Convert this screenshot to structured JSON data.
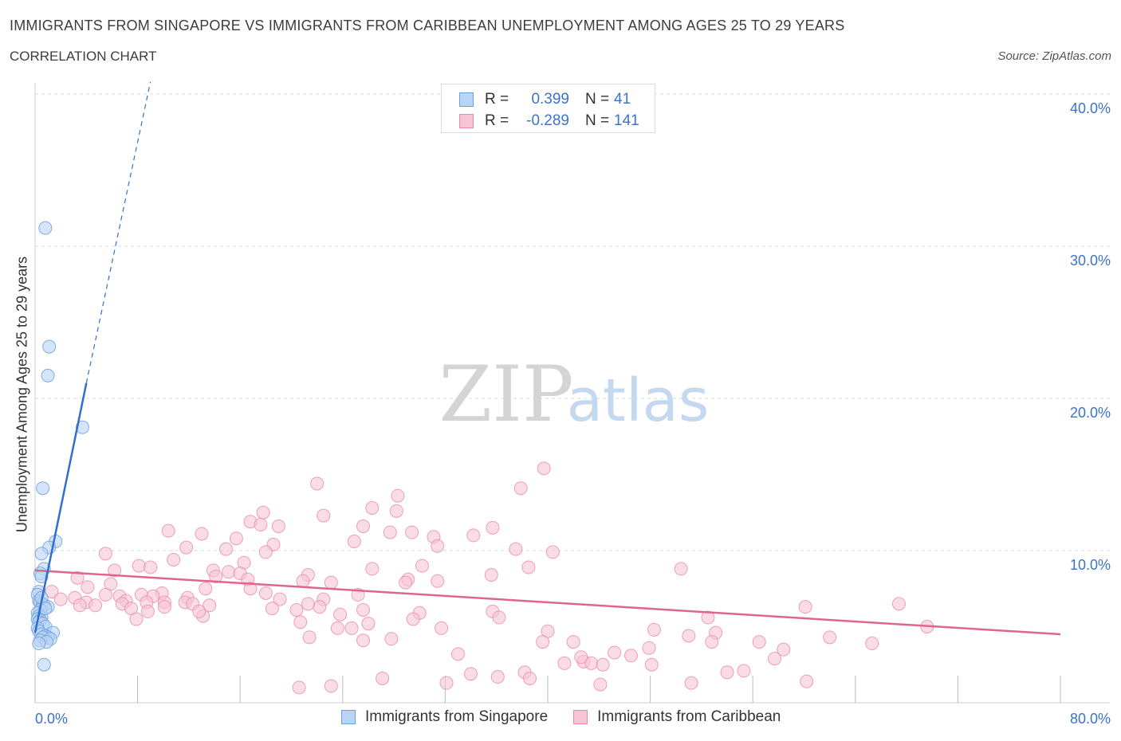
{
  "header": {
    "title": "IMMIGRANTS FROM SINGAPORE VS IMMIGRANTS FROM CARIBBEAN UNEMPLOYMENT AMONG AGES 25 TO 29 YEARS",
    "subtitle": "CORRELATION CHART",
    "source": "Source: ZipAtlas.com"
  },
  "watermark": {
    "zip": "ZIP",
    "atlas": "atlas"
  },
  "legend_top": {
    "rows": [
      {
        "r_label": "R =",
        "r_value": "0.399",
        "n_label": "N =",
        "n_value": "41"
      },
      {
        "r_label": "R =",
        "r_value": "-0.289",
        "n_label": "N =",
        "n_value": "141"
      }
    ]
  },
  "legend_bottom": {
    "items": [
      {
        "label": "Immigrants from Singapore"
      },
      {
        "label": "Immigrants from Caribbean"
      }
    ]
  },
  "colors": {
    "singapore_fill": "#b9d4f5",
    "singapore_stroke": "#6e9fdc",
    "singapore_line": "#2f6fcf",
    "caribbean_fill": "#f7c4d5",
    "caribbean_stroke": "#e98aa9",
    "caribbean_line": "#e0648c",
    "tick_text": "#3b73c9",
    "grid": "#d8d8d8"
  },
  "chart_data": {
    "type": "scatter",
    "title": "IMMIGRANTS FROM SINGAPORE VS IMMIGRANTS FROM CARIBBEAN UNEMPLOYMENT AMONG AGES 25 TO 29 YEARS",
    "xlabel": "",
    "ylabel": "Unemployment Among Ages 25 to 29 years",
    "xlim": [
      0,
      80
    ],
    "ylim": [
      0,
      40
    ],
    "x_tick_labels": [
      "0.0%",
      "80.0%"
    ],
    "y_ticks": [
      10,
      20,
      30,
      40
    ],
    "y_tick_labels": [
      "10.0%",
      "20.0%",
      "30.0%",
      "40.0%"
    ],
    "grid": true,
    "series": [
      {
        "name": "Immigrants from Singapore",
        "r": 0.399,
        "n": 41,
        "trend": {
          "x0": 0,
          "y0": 4.6,
          "x1": 4.0,
          "y1": 21.0,
          "dash_to_x": 9.0,
          "dash_to_y": 40.8
        },
        "points": [
          [
            0.8,
            31.2
          ],
          [
            1.1,
            23.4
          ],
          [
            1.0,
            21.5
          ],
          [
            3.7,
            18.1
          ],
          [
            0.6,
            14.1
          ],
          [
            1.6,
            10.6
          ],
          [
            1.1,
            10.2
          ],
          [
            0.5,
            9.8
          ],
          [
            0.7,
            8.8
          ],
          [
            0.4,
            8.5
          ],
          [
            0.5,
            8.3
          ],
          [
            0.3,
            7.3
          ],
          [
            0.2,
            7.1
          ],
          [
            0.3,
            6.7
          ],
          [
            0.4,
            6.6
          ],
          [
            0.6,
            6.5
          ],
          [
            0.7,
            6.4
          ],
          [
            1.0,
            6.3
          ],
          [
            0.4,
            6.1
          ],
          [
            0.2,
            5.9
          ],
          [
            0.3,
            5.7
          ],
          [
            0.5,
            5.6
          ],
          [
            0.2,
            5.5
          ],
          [
            0.4,
            5.4
          ],
          [
            0.3,
            5.3
          ],
          [
            0.6,
            5.2
          ],
          [
            0.8,
            5.0
          ],
          [
            0.2,
            4.9
          ],
          [
            0.3,
            4.7
          ],
          [
            1.4,
            4.6
          ],
          [
            0.5,
            4.5
          ],
          [
            0.8,
            4.4
          ],
          [
            1.0,
            4.3
          ],
          [
            0.6,
            4.3
          ],
          [
            1.2,
            4.2
          ],
          [
            0.4,
            4.1
          ],
          [
            0.9,
            4.0
          ],
          [
            0.3,
            3.9
          ],
          [
            0.7,
            2.5
          ],
          [
            0.5,
            6.9
          ],
          [
            0.8,
            6.2
          ]
        ]
      },
      {
        "name": "Immigrants from Caribbean",
        "r": -0.289,
        "n": 141,
        "trend": {
          "x0": 0,
          "y0": 8.7,
          "x1": 80,
          "y1": 4.5
        },
        "points": [
          [
            39.7,
            15.4
          ],
          [
            22.0,
            14.4
          ],
          [
            37.9,
            14.1
          ],
          [
            28.3,
            13.6
          ],
          [
            26.3,
            12.8
          ],
          [
            28.2,
            12.6
          ],
          [
            17.8,
            12.5
          ],
          [
            22.5,
            12.3
          ],
          [
            16.8,
            11.9
          ],
          [
            17.6,
            11.7
          ],
          [
            25.6,
            11.6
          ],
          [
            19.0,
            11.6
          ],
          [
            35.7,
            11.5
          ],
          [
            10.4,
            11.3
          ],
          [
            27.7,
            11.2
          ],
          [
            29.4,
            11.2
          ],
          [
            13.0,
            11.1
          ],
          [
            34.2,
            11.0
          ],
          [
            31.1,
            10.9
          ],
          [
            15.7,
            10.8
          ],
          [
            24.9,
            10.6
          ],
          [
            18.6,
            10.4
          ],
          [
            31.4,
            10.3
          ],
          [
            11.8,
            10.2
          ],
          [
            14.9,
            10.1
          ],
          [
            37.5,
            10.1
          ],
          [
            40.4,
            9.9
          ],
          [
            18.0,
            9.9
          ],
          [
            5.5,
            9.8
          ],
          [
            10.8,
            9.4
          ],
          [
            16.3,
            9.2
          ],
          [
            8.1,
            9.0
          ],
          [
            9.0,
            8.9
          ],
          [
            30.2,
            9.0
          ],
          [
            38.5,
            8.9
          ],
          [
            50.4,
            8.8
          ],
          [
            26.3,
            8.8
          ],
          [
            13.9,
            8.7
          ],
          [
            15.1,
            8.6
          ],
          [
            6.2,
            8.7
          ],
          [
            16.0,
            8.5
          ],
          [
            35.6,
            8.4
          ],
          [
            21.3,
            8.4
          ],
          [
            14.1,
            8.3
          ],
          [
            3.3,
            8.2
          ],
          [
            16.6,
            8.1
          ],
          [
            29.1,
            8.1
          ],
          [
            20.9,
            8.0
          ],
          [
            31.4,
            8.0
          ],
          [
            23.1,
            7.9
          ],
          [
            28.9,
            7.9
          ],
          [
            5.9,
            7.8
          ],
          [
            4.1,
            7.6
          ],
          [
            16.8,
            7.5
          ],
          [
            13.3,
            7.5
          ],
          [
            1.3,
            7.3
          ],
          [
            9.9,
            7.2
          ],
          [
            18.0,
            7.2
          ],
          [
            5.5,
            7.1
          ],
          [
            25.2,
            7.1
          ],
          [
            8.3,
            7.1
          ],
          [
            6.6,
            7.0
          ],
          [
            9.2,
            7.0
          ],
          [
            11.9,
            6.9
          ],
          [
            2.0,
            6.8
          ],
          [
            3.1,
            6.9
          ],
          [
            19.1,
            6.8
          ],
          [
            22.5,
            6.8
          ],
          [
            7.1,
            6.7
          ],
          [
            4.0,
            6.6
          ],
          [
            10.1,
            6.6
          ],
          [
            11.7,
            6.6
          ],
          [
            8.7,
            6.6
          ],
          [
            12.3,
            6.5
          ],
          [
            6.8,
            6.5
          ],
          [
            3.5,
            6.4
          ],
          [
            4.7,
            6.4
          ],
          [
            10.1,
            6.3
          ],
          [
            22.2,
            6.3
          ],
          [
            13.6,
            6.4
          ],
          [
            7.5,
            6.2
          ],
          [
            18.5,
            6.2
          ],
          [
            20.4,
            6.1
          ],
          [
            25.6,
            6.1
          ],
          [
            8.8,
            6.0
          ],
          [
            35.7,
            6.0
          ],
          [
            30.0,
            5.9
          ],
          [
            13.1,
            5.7
          ],
          [
            23.8,
            5.8
          ],
          [
            36.2,
            5.6
          ],
          [
            52.5,
            5.6
          ],
          [
            29.5,
            5.5
          ],
          [
            20.7,
            5.3
          ],
          [
            26.0,
            5.2
          ],
          [
            60.1,
            6.3
          ],
          [
            67.4,
            6.5
          ],
          [
            23.6,
            4.9
          ],
          [
            24.7,
            4.9
          ],
          [
            31.7,
            4.9
          ],
          [
            40.0,
            4.7
          ],
          [
            48.3,
            4.8
          ],
          [
            53.1,
            4.6
          ],
          [
            69.6,
            5.0
          ],
          [
            21.4,
            4.3
          ],
          [
            27.8,
            4.2
          ],
          [
            51.0,
            4.4
          ],
          [
            62.0,
            4.3
          ],
          [
            56.5,
            4.0
          ],
          [
            42.0,
            4.0
          ],
          [
            52.8,
            4.0
          ],
          [
            65.3,
            3.9
          ],
          [
            25.6,
            4.1
          ],
          [
            39.6,
            4.0
          ],
          [
            33.0,
            3.2
          ],
          [
            45.2,
            3.3
          ],
          [
            58.4,
            3.5
          ],
          [
            41.3,
            2.6
          ],
          [
            42.8,
            2.7
          ],
          [
            43.4,
            2.6
          ],
          [
            48.1,
            2.5
          ],
          [
            44.3,
            2.5
          ],
          [
            38.2,
            2.0
          ],
          [
            54.0,
            2.0
          ],
          [
            55.3,
            2.1
          ],
          [
            34.0,
            1.9
          ],
          [
            27.1,
            1.6
          ],
          [
            36.1,
            1.7
          ],
          [
            38.6,
            1.6
          ],
          [
            32.1,
            1.3
          ],
          [
            51.2,
            1.3
          ],
          [
            23.1,
            1.1
          ],
          [
            44.1,
            1.2
          ],
          [
            20.6,
            1.0
          ],
          [
            21.3,
            6.5
          ],
          [
            12.8,
            6.0
          ],
          [
            7.9,
            5.5
          ],
          [
            46.5,
            3.1
          ],
          [
            47.9,
            3.6
          ],
          [
            42.6,
            3.0
          ],
          [
            57.7,
            2.9
          ],
          [
            60.2,
            1.4
          ]
        ]
      }
    ]
  }
}
